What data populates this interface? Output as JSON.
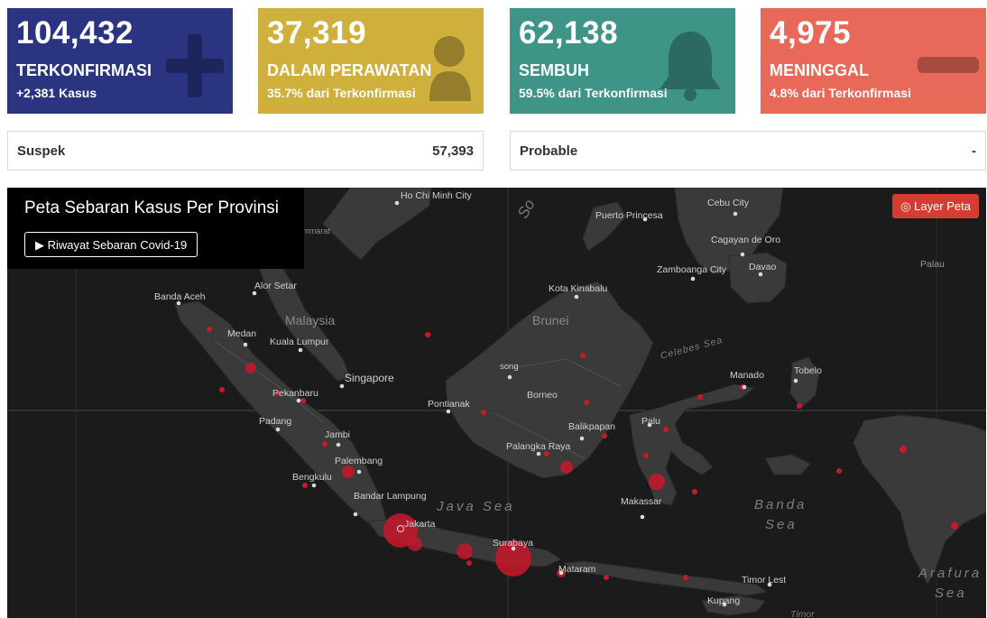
{
  "cards": [
    {
      "value": "104,432",
      "label": "TERKONFIRMASI",
      "sub": "+2,381 Kasus",
      "color": "#2b3480",
      "icon": "plus-icon"
    },
    {
      "value": "37,319",
      "label": "DALAM PERAWATAN",
      "sub": "35.7% dari Terkonfirmasi",
      "color": "#d0b03c",
      "icon": "patient-icon"
    },
    {
      "value": "62,138",
      "label": "SEMBUH",
      "sub": "59.5% dari Terkonfirmasi",
      "color": "#3e9487",
      "icon": "bell-icon"
    },
    {
      "value": "4,975",
      "label": "MENINGGAL",
      "sub": "4.8% dari Terkonfirmasi",
      "color": "#e8695a",
      "icon": "minus-icon"
    }
  ],
  "stats": [
    {
      "label": "Suspek",
      "value": "57,393"
    },
    {
      "label": "Probable",
      "value": "-"
    }
  ],
  "map": {
    "title": "Peta Sebaran Kasus Per Provinsi",
    "history_button": "Riwayat Sebaran Covid-19",
    "history_icon": "play-icon",
    "layer_button": "Layer Peta",
    "layer_icon": "target-icon",
    "city_labels": [
      "Ho Chi Minh City",
      "Nakhon Si Thammarat",
      "Puerto Princesa",
      "Cebu City",
      "Cagayan de Oro",
      "Zamboanga City",
      "Davao",
      "Palau",
      "Banda Aceh",
      "Alor Setar",
      "Kota Kinabalu",
      "Brunei",
      "Malaysia",
      "Medan",
      "Kuala Lumpur",
      "song",
      "Manado",
      "Tobelo",
      "Singapore",
      "Pekanbaru",
      "Pontianak",
      "Borneo",
      "Padang",
      "Jambi",
      "Balikpapan",
      "Palu",
      "Palangka Raya",
      "Palembang",
      "Bengkulu",
      "Bandar Lampung",
      "Jakarta",
      "Makassar",
      "Surabaya",
      "Mataram",
      "Timor Lest",
      "Kupang",
      "Timor"
    ],
    "sea_labels": [
      "So",
      "Celebes Sea",
      "Java Sea",
      "Banda Sea",
      "Arafura Sea"
    ]
  }
}
